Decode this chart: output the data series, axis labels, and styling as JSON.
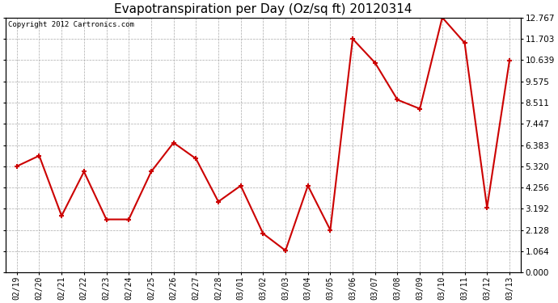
{
  "title": "Evapotranspiration per Day (Oz/sq ft) 20120314",
  "copyright_text": "Copyright 2012 Cartronics.com",
  "x_labels": [
    "02/19",
    "02/20",
    "02/21",
    "02/22",
    "02/23",
    "02/24",
    "02/25",
    "02/26",
    "02/27",
    "02/28",
    "03/01",
    "03/02",
    "03/03",
    "03/04",
    "03/05",
    "03/06",
    "03/07",
    "03/08",
    "03/09",
    "03/10",
    "03/11",
    "03/12",
    "03/13"
  ],
  "y_values": [
    5.32,
    5.85,
    2.84,
    5.05,
    2.66,
    2.66,
    5.05,
    6.5,
    5.7,
    3.55,
    4.35,
    1.95,
    1.1,
    4.35,
    2.13,
    11.7,
    10.5,
    8.65,
    8.2,
    12.77,
    11.5,
    3.25,
    10.6
  ],
  "line_color": "#cc0000",
  "marker": "+",
  "marker_color": "#cc0000",
  "marker_size": 5,
  "line_width": 1.5,
  "background_color": "#ffffff",
  "grid_color": "#aaaaaa",
  "grid_style": "--",
  "ylim": [
    0.0,
    12.767
  ],
  "yticks": [
    0.0,
    1.064,
    2.128,
    3.192,
    4.256,
    5.32,
    6.383,
    7.447,
    8.511,
    9.575,
    10.639,
    11.703,
    12.767
  ],
  "title_fontsize": 11,
  "copyright_fontsize": 6.5,
  "tick_fontsize": 7.5,
  "xtick_fontsize": 7
}
